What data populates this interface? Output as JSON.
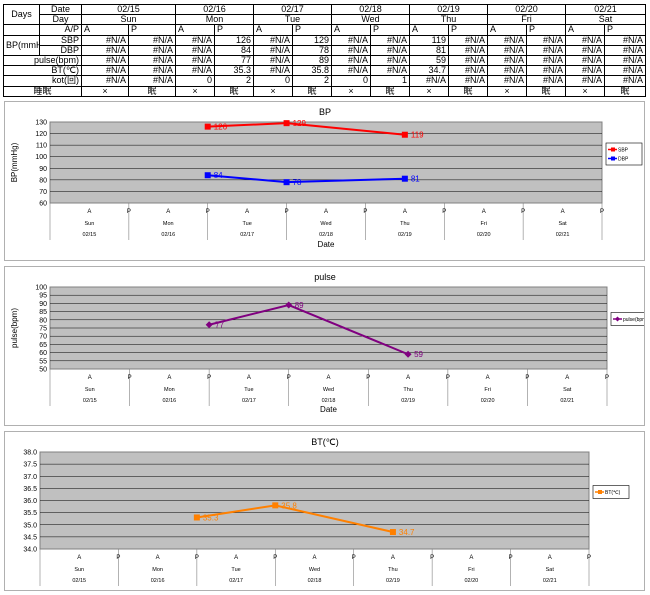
{
  "table": {
    "days_label": "Days",
    "date_label": "Date",
    "day_label": "Day",
    "ap_label": "A/P",
    "bp_label": "BP(mmHg)",
    "sbp_label": "SBP",
    "dbp_label": "DBP",
    "pulse_label": "pulse(bpm)",
    "bt_label": "BT(℃)",
    "kot_label": "kot(回)",
    "sleep_label": "睡眠",
    "a_label": "A",
    "p_label": "P",
    "dates": [
      "02/15",
      "02/16",
      "02/17",
      "02/18",
      "02/19",
      "02/20",
      "02/21"
    ],
    "days": [
      "Sun",
      "Mon",
      "Tue",
      "Wed",
      "Thu",
      "Fri",
      "Sat"
    ],
    "sbp": [
      "#N/A",
      "#N/A",
      "#N/A",
      "126",
      "#N/A",
      "129",
      "#N/A",
      "#N/A",
      "119",
      "#N/A",
      "#N/A",
      "#N/A",
      "#N/A",
      "#N/A"
    ],
    "dbp": [
      "#N/A",
      "#N/A",
      "#N/A",
      "84",
      "#N/A",
      "78",
      "#N/A",
      "#N/A",
      "81",
      "#N/A",
      "#N/A",
      "#N/A",
      "#N/A",
      "#N/A"
    ],
    "pulse": [
      "#N/A",
      "#N/A",
      "#N/A",
      "77",
      "#N/A",
      "89",
      "#N/A",
      "#N/A",
      "59",
      "#N/A",
      "#N/A",
      "#N/A",
      "#N/A",
      "#N/A"
    ],
    "bt": [
      "#N/A",
      "#N/A",
      "#N/A",
      "35.3",
      "#N/A",
      "35.8",
      "#N/A",
      "#N/A",
      "34.7",
      "#N/A",
      "#N/A",
      "#N/A",
      "#N/A",
      "#N/A"
    ],
    "kot": [
      "#N/A",
      "#N/A",
      "0",
      "2",
      "0",
      "2",
      "0",
      "1",
      "#N/A",
      "#N/A",
      "#N/A",
      "#N/A",
      "#N/A",
      "#N/A"
    ],
    "sleep": [
      "×",
      "眠",
      "×",
      "眠",
      "×",
      "眠",
      "×",
      "眠",
      "×",
      "眠",
      "×",
      "眠",
      "×",
      "眠"
    ]
  },
  "chart_data": [
    {
      "type": "line",
      "title": "BP",
      "ylabel": "BP(mmHg)",
      "xlabel": "Date",
      "ylim": [
        60,
        130
      ],
      "yticks": [
        60,
        70,
        80,
        90,
        100,
        110,
        120,
        130
      ],
      "ytick_decimals": 0,
      "grid": true,
      "legend": "right",
      "series": [
        {
          "name": "SBP",
          "color": "#ff0000",
          "marker": "square",
          "values": [
            null,
            null,
            null,
            126,
            null,
            129,
            null,
            null,
            119,
            null,
            null,
            null,
            null,
            null
          ]
        },
        {
          "name": "DBP",
          "color": "#0000ff",
          "marker": "square",
          "values": [
            null,
            null,
            null,
            84,
            null,
            78,
            null,
            null,
            81,
            null,
            null,
            null,
            null,
            null
          ]
        }
      ]
    },
    {
      "type": "line",
      "title": "pulse",
      "ylabel": "pulse(bpm)",
      "xlabel": "Date",
      "ylim": [
        50,
        100
      ],
      "yticks": [
        50,
        55,
        60,
        65,
        70,
        75,
        80,
        85,
        90,
        95,
        100
      ],
      "ytick_decimals": 0,
      "grid": true,
      "legend": "right",
      "series": [
        {
          "name": "pulse(bpm)",
          "color": "#800080",
          "marker": "diamond",
          "values": [
            null,
            null,
            null,
            77,
            null,
            89,
            null,
            null,
            59,
            null,
            null,
            null,
            null,
            null
          ]
        }
      ]
    },
    {
      "type": "line",
      "title": "BT(℃)",
      "ylabel": "",
      "xlabel": "",
      "ylim": [
        34.0,
        38.0
      ],
      "yticks": [
        34.0,
        34.5,
        35.0,
        35.5,
        36.0,
        36.5,
        37.0,
        37.5,
        38.0
      ],
      "ytick_decimals": 1,
      "grid": true,
      "legend": "right",
      "series": [
        {
          "name": "BT(℃)",
          "color": "#ff8000",
          "marker": "square",
          "values": [
            null,
            null,
            null,
            35.3,
            null,
            35.8,
            null,
            null,
            34.7,
            null,
            null,
            null,
            null,
            null
          ]
        }
      ]
    }
  ]
}
